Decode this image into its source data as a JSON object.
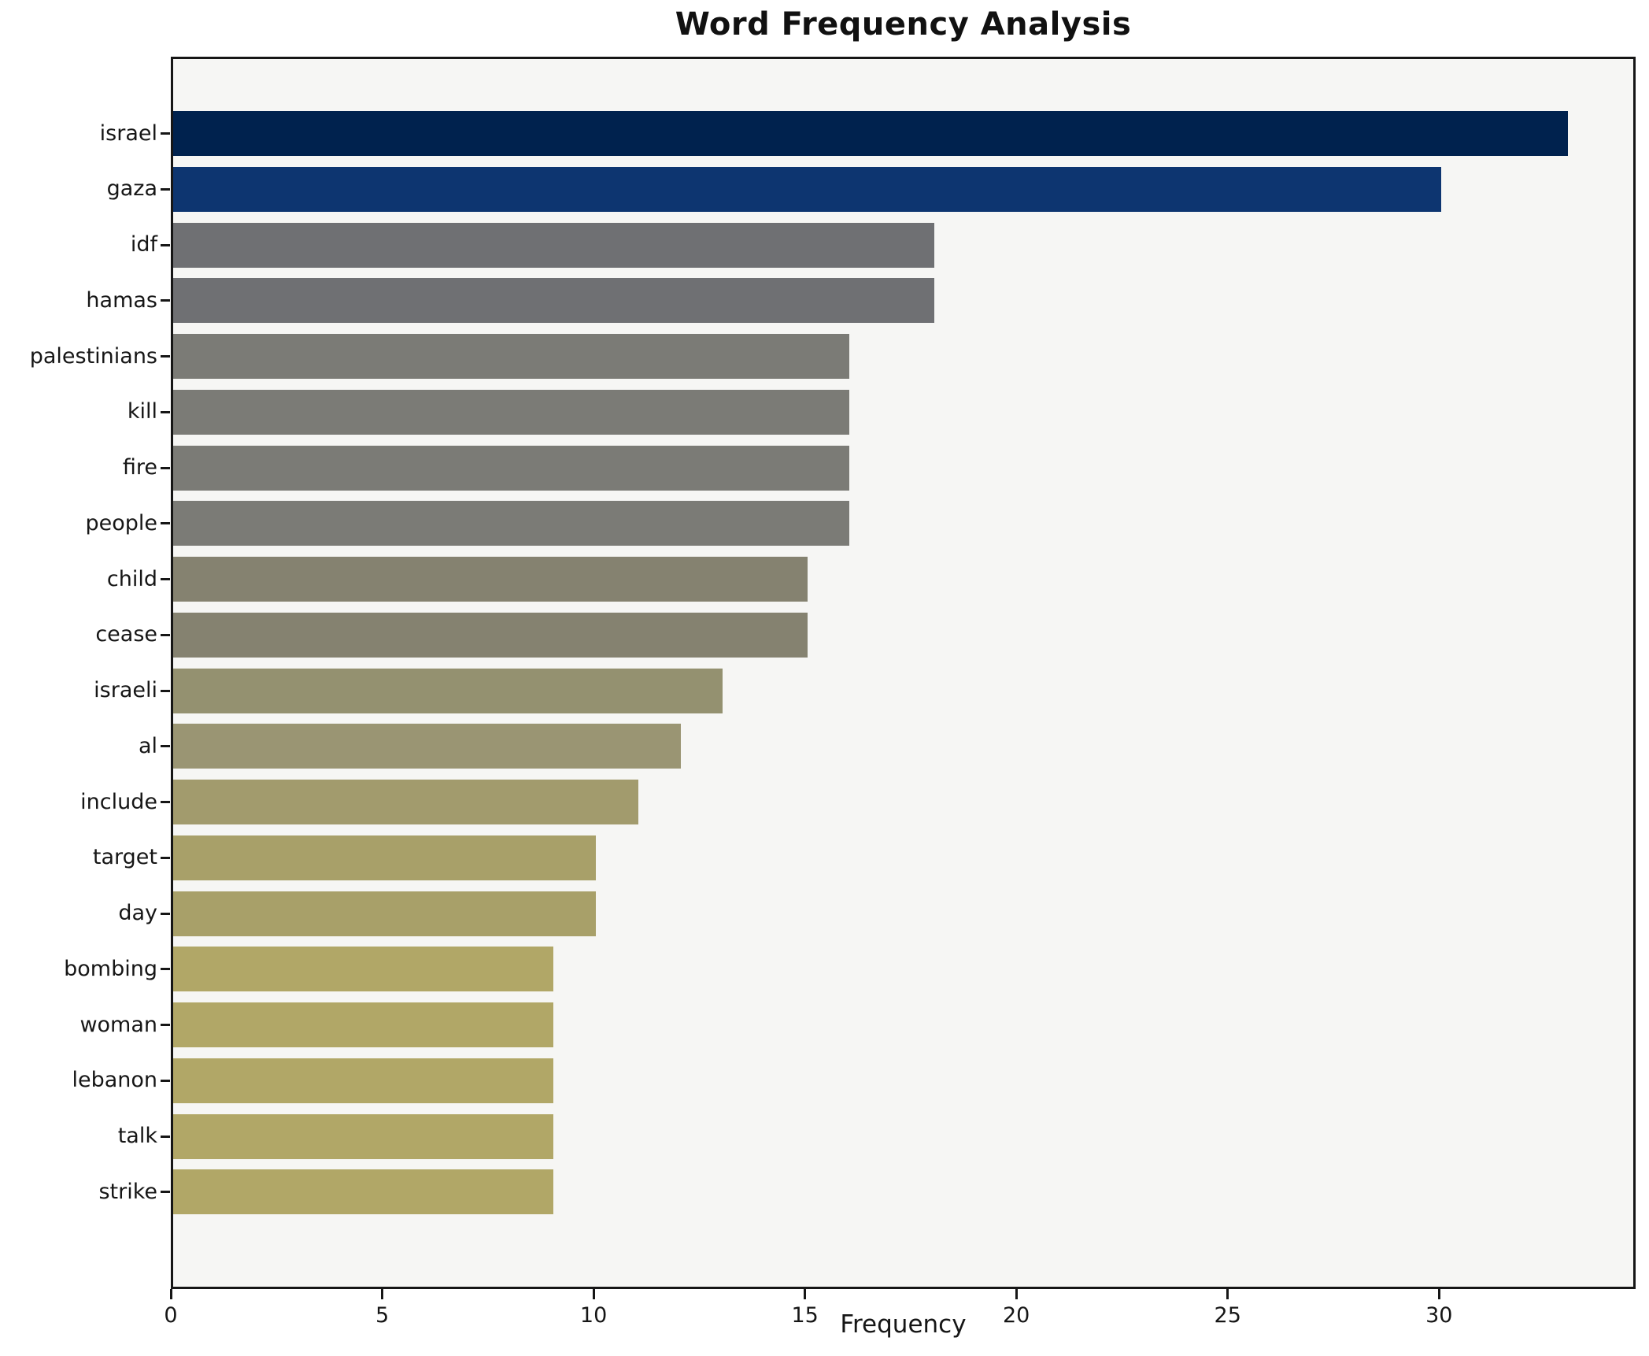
{
  "chart_data": {
    "type": "bar",
    "orientation": "horizontal",
    "title": "Word Frequency Analysis",
    "xlabel": "Frequency",
    "ylabel": "",
    "categories": [
      "israel",
      "gaza",
      "idf",
      "hamas",
      "palestinians",
      "kill",
      "fire",
      "people",
      "child",
      "cease",
      "israeli",
      "al",
      "include",
      "target",
      "day",
      "bombing",
      "woman",
      "lebanon",
      "talk",
      "strike"
    ],
    "values": [
      33,
      30,
      18,
      18,
      16,
      16,
      16,
      16,
      15,
      15,
      13,
      12,
      11,
      10,
      10,
      9,
      9,
      9,
      9,
      9
    ],
    "bar_colors": [
      "#00224e",
      "#0d3570",
      "#6f7073",
      "#6f7073",
      "#7b7b76",
      "#7b7b76",
      "#7b7b76",
      "#7b7b76",
      "#858270",
      "#858270",
      "#949170",
      "#9a9573",
      "#a29b6d",
      "#a8a069",
      "#a8a069",
      "#b1a767",
      "#b1a767",
      "#b1a767",
      "#b1a767",
      "#b1a767"
    ],
    "x_ticks": [
      "0",
      "5",
      "10",
      "15",
      "20",
      "25",
      "30"
    ],
    "x_tick_values": [
      0,
      5,
      10,
      15,
      20,
      25,
      30
    ],
    "xlim": [
      0,
      34.65
    ],
    "grid": false,
    "legend": null,
    "colors": {
      "figure_bg": "#ffffff",
      "plot_bg": "#f6f6f4",
      "spine": "#161616",
      "text": "#161616"
    }
  }
}
